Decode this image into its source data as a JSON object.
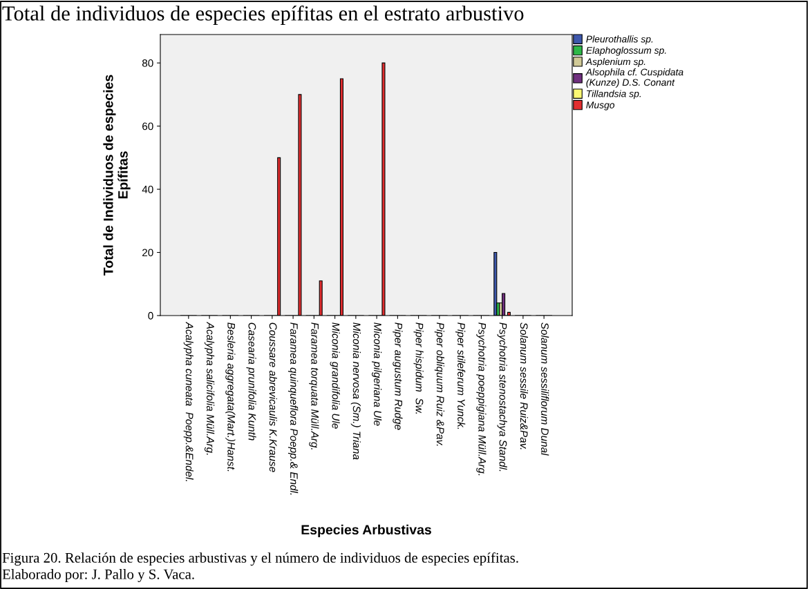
{
  "chart_data": {
    "type": "bar",
    "title": "Total de individuos de especies epífitas en el estrato arbustivo",
    "xlabel": "Especies Arbustivas",
    "ylabel": "Total de Individuos de especies\nEpífitas",
    "categories": [
      "Acalypha cuneata  Poepp.&Endel.",
      "Acalypha salicifolia Müll.Arg.",
      "Besleria aggregata(Mart.)Hanst.",
      "Casearia prunifolia Kunth",
      "Coussare abrevicaulis K.Krause",
      "Faramea quinqueflora Poepp.& Endl.",
      "Faramea torquata Müll.Arg.",
      "Miconia grandifolia Ule",
      "Miconia nervosa (Sm.) Triana",
      "Miconia pilgeriana Ule",
      "Piper augustum Rudge",
      "Piper hispidum  Sw.",
      "Piper obliquum Ruiz &Pav.",
      "Piper stileferum Yunck.",
      "Psychotria poeppigiana Müll.Arg.",
      "Psychotria stenostachya Standl.",
      "Solanum sessile Ruiz&Pav.",
      "Solanum sessiliflorum Dunal"
    ],
    "series": [
      {
        "name": "Pleurothallis sp.",
        "color": "#3e58ac",
        "values": [
          0,
          0,
          0,
          0,
          0,
          0,
          0,
          0,
          0,
          0,
          0,
          0,
          0,
          0,
          0,
          20,
          0,
          0
        ]
      },
      {
        "name": "Elaphoglossum sp.",
        "color": "#2eb848",
        "values": [
          0,
          0,
          0,
          0,
          0,
          0,
          0,
          0,
          0,
          0,
          0,
          0,
          0,
          0,
          0,
          4,
          0,
          0
        ]
      },
      {
        "name": "Asplenium sp.",
        "color": "#d1ca97",
        "values": [
          0,
          0,
          0,
          0,
          0,
          0,
          0,
          0,
          0,
          0,
          0,
          0,
          0,
          0,
          0,
          4,
          0,
          0
        ]
      },
      {
        "name": "Alsophila cf. Cuspidata\n(Kunze) D.S. Conant",
        "color": "#70307f",
        "values": [
          0,
          0,
          0,
          0,
          0,
          0,
          0,
          0,
          0,
          0,
          0,
          0,
          0,
          0,
          0,
          7,
          0,
          0
        ]
      },
      {
        "name": "Tillandsia sp.",
        "color": "#fbf873",
        "values": [
          0,
          0,
          0,
          0,
          0,
          0,
          0,
          0,
          0,
          0,
          0,
          0,
          0,
          0,
          0,
          0,
          0,
          0
        ]
      },
      {
        "name": "Musgo",
        "color": "#e32e30",
        "values": [
          0,
          0,
          0,
          0,
          50,
          70,
          11,
          75,
          0,
          80,
          0,
          0,
          0,
          0,
          0,
          1,
          0,
          0
        ]
      }
    ],
    "ylim": [
      0,
      89
    ],
    "yticks": [
      0,
      20,
      40,
      60,
      80
    ],
    "legend": "top right",
    "annotations": [
      "Figura 20. Relación de especies arbustivas y el número de individuos de especies epífitas.",
      "Elaborado por: J. Pallo y S. Vaca."
    ]
  }
}
